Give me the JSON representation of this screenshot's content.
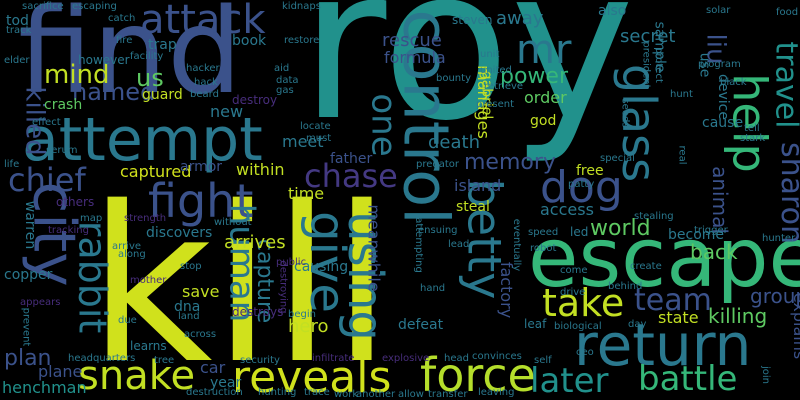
{
  "palette": {
    "background": "#000000",
    "lime": "#d0e11c",
    "green": "#5ec962",
    "teal": "#21918c",
    "blue": "#3b528b",
    "purple": "#472d7b",
    "dark_purple": "#440154"
  },
  "words": [
    {
      "text": "roy",
      "color": "#21918c"
    },
    {
      "text": "kill",
      "color": "#d0e11c"
    },
    {
      "text": "find",
      "color": "#3b528b"
    },
    {
      "text": "escape",
      "color": "#35b779"
    },
    {
      "text": "attempt",
      "color": "#2a788e"
    },
    {
      "text": "control",
      "color": "#2a788e"
    },
    {
      "text": "return",
      "color": "#2a788e"
    },
    {
      "text": "city",
      "color": "#3b528b"
    },
    {
      "text": "reveals",
      "color": "#d0e11c"
    },
    {
      "text": "force",
      "color": "#b5de2b"
    },
    {
      "text": "snake",
      "color": "#c2df23"
    },
    {
      "text": "fight",
      "color": "#3b528b"
    },
    {
      "text": "attack",
      "color": "#3b528b"
    },
    {
      "text": "dog",
      "color": "#3b528b"
    },
    {
      "text": "help",
      "color": "#35b779"
    },
    {
      "text": "betty",
      "color": "#2a788e"
    },
    {
      "text": "glass",
      "color": "#2a788e"
    },
    {
      "text": "using",
      "color": "#2a788e"
    },
    {
      "text": "give",
      "color": "#2a788e"
    },
    {
      "text": "rabbit",
      "color": "#2a788e"
    },
    {
      "text": "chase",
      "color": "#443983"
    },
    {
      "text": "chief",
      "color": "#3b528b"
    },
    {
      "text": "later",
      "color": "#21918c"
    },
    {
      "text": "battle",
      "color": "#35b779"
    },
    {
      "text": "take",
      "color": "#c2df23"
    },
    {
      "text": "team",
      "color": "#3b528b"
    },
    {
      "text": "sharon",
      "color": "#3b528b"
    },
    {
      "text": "travel",
      "color": "#21918c"
    },
    {
      "text": "human",
      "color": "#2a788e"
    },
    {
      "text": "mind",
      "color": "#c2df23"
    },
    {
      "text": "mr",
      "color": "#2a788e"
    },
    {
      "text": "us",
      "color": "#5ec962"
    },
    {
      "text": "one",
      "color": "#2a788e"
    },
    {
      "text": "liu",
      "color": "#3b528b"
    },
    {
      "text": "power",
      "color": "#35b779"
    },
    {
      "text": "named",
      "color": "#3b528b"
    },
    {
      "text": "killed",
      "color": "#3b528b"
    },
    {
      "text": "memory",
      "color": "#3b528b"
    },
    {
      "text": "world",
      "color": "#5ec962"
    },
    {
      "text": "plan",
      "color": "#3b528b"
    },
    {
      "text": "group",
      "color": "#3b528b"
    },
    {
      "text": "killing",
      "color": "#5ec962"
    },
    {
      "text": "animal",
      "color": "#3b528b"
    },
    {
      "text": "back",
      "color": "#5ec962"
    },
    {
      "text": "hero",
      "color": "#c2df23"
    },
    {
      "text": "captured",
      "color": "#d0e11c"
    },
    {
      "text": "capture",
      "color": "#2a788e"
    },
    {
      "text": "arrives",
      "color": "#c2df23"
    },
    {
      "text": "rescue",
      "color": "#3b528b"
    },
    {
      "text": "formula",
      "color": "#3b528b"
    },
    {
      "text": "secret",
      "color": "#2a788e"
    },
    {
      "text": "away",
      "color": "#2a788e"
    },
    {
      "text": "island",
      "color": "#3b528b"
    },
    {
      "text": "death",
      "color": "#2a788e"
    },
    {
      "text": "order",
      "color": "#5ec962"
    },
    {
      "text": "access",
      "color": "#2a788e"
    },
    {
      "text": "plane",
      "color": "#3b528b"
    },
    {
      "text": "henchman",
      "color": "#21918c"
    },
    {
      "text": "explains",
      "color": "#3b528b"
    },
    {
      "text": "state",
      "color": "#c2df23"
    },
    {
      "text": "car",
      "color": "#3b528b"
    },
    {
      "text": "year",
      "color": "#2a788e"
    },
    {
      "text": "save",
      "color": "#c2df23"
    },
    {
      "text": "dna",
      "color": "#2a788e"
    },
    {
      "text": "within",
      "color": "#c2df23"
    },
    {
      "text": "meet",
      "color": "#2a788e"
    },
    {
      "text": "new",
      "color": "#2a788e"
    },
    {
      "text": "time",
      "color": "#c2df23"
    },
    {
      "text": "guard",
      "color": "#c2df23"
    },
    {
      "text": "crash",
      "color": "#5ec962"
    },
    {
      "text": "meanwhile",
      "color": "#3b528b"
    },
    {
      "text": "manages",
      "color": "#c2df23"
    },
    {
      "text": "factory",
      "color": "#3b528b"
    },
    {
      "text": "defeat",
      "color": "#2a788e"
    },
    {
      "text": "steal",
      "color": "#c2df23"
    },
    {
      "text": "become",
      "color": "#2a788e"
    },
    {
      "text": "discovers",
      "color": "#2a788e"
    },
    {
      "text": "warren",
      "color": "#2a788e"
    },
    {
      "text": "copper",
      "color": "#2a788e"
    },
    {
      "text": "learns",
      "color": "#2a788e"
    },
    {
      "text": "free",
      "color": "#c2df23"
    },
    {
      "text": "led",
      "color": "#2a788e"
    },
    {
      "text": "cause",
      "color": "#2a788e"
    },
    {
      "text": "device",
      "color": "#2a788e"
    },
    {
      "text": "armor",
      "color": "#3b528b"
    },
    {
      "text": "father",
      "color": "#3b528b"
    },
    {
      "text": "causing",
      "color": "#2a788e"
    },
    {
      "text": "also",
      "color": "#2a788e"
    },
    {
      "text": "sample",
      "color": "#2a788e"
    },
    {
      "text": "god",
      "color": "#c2df23"
    },
    {
      "text": "gabriel",
      "color": "#c2df23"
    },
    {
      "text": "trap",
      "color": "#2a788e"
    },
    {
      "text": "book",
      "color": "#2a788e"
    },
    {
      "text": "however",
      "color": "#2a788e"
    },
    {
      "text": "steven",
      "color": "#2a788e"
    },
    {
      "text": "tod",
      "color": "#2a788e"
    },
    {
      "text": "sacrifice",
      "color": "#2a788e"
    },
    {
      "text": "escaping",
      "color": "#2a788e"
    },
    {
      "text": "catch",
      "color": "#2a788e"
    },
    {
      "text": "kidnaps",
      "color": "#2a788e"
    },
    {
      "text": "solar",
      "color": "#2a788e"
    },
    {
      "text": "food",
      "color": "#2a788e"
    },
    {
      "text": "hacker",
      "color": "#2a788e"
    },
    {
      "text": "hack",
      "color": "#2a788e"
    },
    {
      "text": "facility",
      "color": "#2a788e"
    },
    {
      "text": "aid",
      "color": "#2a788e"
    },
    {
      "text": "data",
      "color": "#2a788e"
    },
    {
      "text": "gas",
      "color": "#2a788e"
    },
    {
      "text": "destroy",
      "color": "#472d7b"
    },
    {
      "text": "destroys",
      "color": "#472d7b"
    },
    {
      "text": "others",
      "color": "#472d7b"
    },
    {
      "text": "tracking",
      "color": "#472d7b"
    },
    {
      "text": "strength",
      "color": "#472d7b"
    },
    {
      "text": "mother",
      "color": "#472d7b"
    },
    {
      "text": "arrive",
      "color": "#2a788e"
    },
    {
      "text": "public",
      "color": "#472d7b"
    },
    {
      "text": "hand",
      "color": "#2a788e"
    },
    {
      "text": "land",
      "color": "#2a788e"
    },
    {
      "text": "begin",
      "color": "#2a788e"
    },
    {
      "text": "due",
      "color": "#2a788e"
    },
    {
      "text": "across",
      "color": "#2a788e"
    },
    {
      "text": "security",
      "color": "#2a788e"
    },
    {
      "text": "headquarters",
      "color": "#2a788e"
    },
    {
      "text": "destruction",
      "color": "#2a788e"
    },
    {
      "text": "hunting",
      "color": "#2a788e"
    },
    {
      "text": "trace",
      "color": "#2a788e"
    },
    {
      "text": "work",
      "color": "#2a788e"
    },
    {
      "text": "another",
      "color": "#2a788e"
    },
    {
      "text": "allow",
      "color": "#2a788e"
    },
    {
      "text": "transfer",
      "color": "#2a788e"
    },
    {
      "text": "head",
      "color": "#2a788e"
    },
    {
      "text": "convinces",
      "color": "#2a788e"
    },
    {
      "text": "self",
      "color": "#2a788e"
    },
    {
      "text": "explosive",
      "color": "#472d7b"
    },
    {
      "text": "infiltrate",
      "color": "#472d7b"
    },
    {
      "text": "biological",
      "color": "#2a788e"
    },
    {
      "text": "day",
      "color": "#2a788e"
    },
    {
      "text": "join",
      "color": "#2a788e"
    },
    {
      "text": "leaf",
      "color": "#2a788e"
    },
    {
      "text": "drive",
      "color": "#2a788e"
    },
    {
      "text": "behind",
      "color": "#2a788e"
    },
    {
      "text": "speed",
      "color": "#2a788e"
    },
    {
      "text": "robot",
      "color": "#2a788e"
    },
    {
      "text": "lead",
      "color": "#2a788e"
    },
    {
      "text": "hunter",
      "color": "#2a788e"
    },
    {
      "text": "trigger",
      "color": "#2a788e"
    },
    {
      "text": "real",
      "color": "#2a788e"
    },
    {
      "text": "special",
      "color": "#2a788e"
    },
    {
      "text": "stark",
      "color": "#2a788e"
    },
    {
      "text": "locate",
      "color": "#2a788e"
    },
    {
      "text": "must",
      "color": "#2a788e"
    },
    {
      "text": "predator",
      "color": "#2a788e"
    },
    {
      "text": "president",
      "color": "#2a788e"
    },
    {
      "text": "program",
      "color": "#2a788e"
    },
    {
      "text": "protect",
      "color": "#2a788e"
    },
    {
      "text": "retrieve",
      "color": "#2a788e"
    },
    {
      "text": "present",
      "color": "#2a788e"
    },
    {
      "text": "hunt",
      "color": "#2a788e"
    },
    {
      "text": "tell",
      "color": "#2a788e"
    },
    {
      "text": "patty",
      "color": "#2a788e"
    },
    {
      "text": "elder",
      "color": "#2a788e"
    },
    {
      "text": "track",
      "color": "#2a788e"
    },
    {
      "text": "fire",
      "color": "#2a788e"
    },
    {
      "text": "restore",
      "color": "#2a788e"
    },
    {
      "text": "beard",
      "color": "#2a788e"
    },
    {
      "text": "effect",
      "color": "#2a788e"
    },
    {
      "text": "serum",
      "color": "#2a788e"
    },
    {
      "text": "life",
      "color": "#2a788e"
    },
    {
      "text": "map",
      "color": "#2a788e"
    },
    {
      "text": "prevent",
      "color": "#2a788e"
    },
    {
      "text": "appears",
      "color": "#472d7b"
    },
    {
      "text": "stop",
      "color": "#2a788e"
    },
    {
      "text": "along",
      "color": "#2a788e"
    },
    {
      "text": "without",
      "color": "#2a788e"
    },
    {
      "text": "attempting",
      "color": "#2a788e"
    },
    {
      "text": "create",
      "color": "#2a788e"
    },
    {
      "text": "stealing",
      "color": "#2a788e"
    },
    {
      "text": "destroying",
      "color": "#472d7b"
    },
    {
      "text": "unit",
      "color": "#2a788e"
    },
    {
      "text": "come",
      "color": "#2a788e"
    },
    {
      "text": "ceo",
      "color": "#2a788e"
    },
    {
      "text": "eventually",
      "color": "#2a788e"
    },
    {
      "text": "ensuing",
      "color": "#2a788e"
    },
    {
      "text": "united",
      "color": "#2a788e"
    },
    {
      "text": "leaving",
      "color": "#2a788e"
    },
    {
      "text": "tree",
      "color": "#2a788e"
    },
    {
      "text": "bounty",
      "color": "#2a788e"
    },
    {
      "text": "seeds",
      "color": "#2a788e"
    },
    {
      "text": "black",
      "color": "#2a788e"
    },
    {
      "text": "use",
      "color": "#2a788e"
    }
  ]
}
